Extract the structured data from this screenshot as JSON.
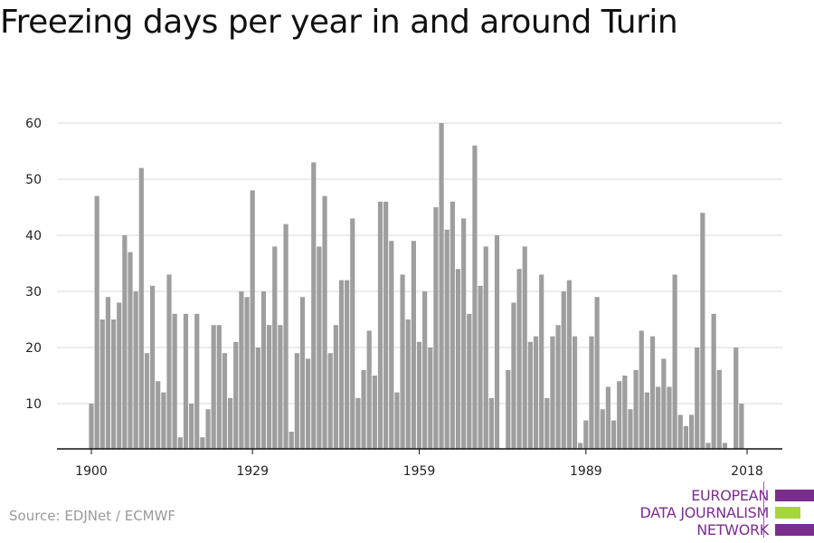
{
  "colors": {
    "bar": "#9e9e9e",
    "grid": "#d9d9d9",
    "axis": "#111111",
    "logo_purple": "#7b2d8e",
    "logo_green": "#a6d63b"
  },
  "footer": {
    "source": "Source: EDJNet / ECMWF"
  },
  "logo": {
    "line1": "EUROPEAN",
    "line2": "DATA JOURNALISM",
    "line3": "NETWORK"
  },
  "chart_data": {
    "type": "bar",
    "title": "Freezing days per year in and around Turin",
    "xlabel": "",
    "ylabel": "",
    "ylim": [
      2,
      61
    ],
    "y_ticks": [
      10,
      20,
      30,
      40,
      50,
      60
    ],
    "x_ticks": [
      1900,
      1929,
      1959,
      1989,
      2018
    ],
    "grid": true,
    "x": [
      1900,
      1901,
      1902,
      1903,
      1904,
      1905,
      1906,
      1907,
      1908,
      1909,
      1910,
      1911,
      1912,
      1913,
      1914,
      1915,
      1916,
      1917,
      1918,
      1919,
      1920,
      1921,
      1922,
      1923,
      1924,
      1925,
      1926,
      1927,
      1928,
      1929,
      1930,
      1931,
      1932,
      1933,
      1934,
      1935,
      1936,
      1937,
      1938,
      1939,
      1940,
      1941,
      1942,
      1943,
      1944,
      1945,
      1946,
      1947,
      1948,
      1949,
      1950,
      1951,
      1952,
      1953,
      1954,
      1955,
      1956,
      1957,
      1958,
      1959,
      1960,
      1961,
      1962,
      1963,
      1964,
      1965,
      1966,
      1967,
      1968,
      1969,
      1970,
      1971,
      1972,
      1973,
      1974,
      1975,
      1976,
      1977,
      1978,
      1979,
      1980,
      1981,
      1982,
      1983,
      1984,
      1985,
      1986,
      1987,
      1988,
      1989,
      1990,
      1991,
      1992,
      1993,
      1994,
      1995,
      1996,
      1997,
      1998,
      1999,
      2000,
      2001,
      2002,
      2003,
      2004,
      2005,
      2006,
      2007,
      2008,
      2009,
      2010,
      2011,
      2012,
      2013,
      2014,
      2015,
      2016,
      2017,
      2018
    ],
    "values": [
      10,
      47,
      25,
      29,
      25,
      28,
      40,
      37,
      30,
      52,
      19,
      31,
      14,
      12,
      33,
      26,
      4,
      26,
      10,
      26,
      4,
      9,
      24,
      24,
      19,
      11,
      21,
      30,
      29,
      48,
      20,
      30,
      24,
      38,
      24,
      42,
      5,
      19,
      29,
      18,
      53,
      38,
      47,
      19,
      24,
      32,
      32,
      43,
      11,
      16,
      23,
      15,
      46,
      46,
      39,
      12,
      33,
      25,
      39,
      21,
      30,
      20,
      45,
      60,
      41,
      46,
      34,
      43,
      26,
      56,
      31,
      38,
      11,
      40,
      2,
      16,
      28,
      34,
      38,
      21,
      22,
      33,
      11,
      22,
      24,
      30,
      32,
      22,
      3,
      7,
      22,
      29,
      9,
      13,
      7,
      14,
      15,
      9,
      16,
      23,
      12,
      22,
      13,
      18,
      13,
      33,
      8,
      6,
      8,
      20,
      44,
      3,
      26,
      16,
      3,
      2,
      20,
      10,
      2
    ]
  }
}
